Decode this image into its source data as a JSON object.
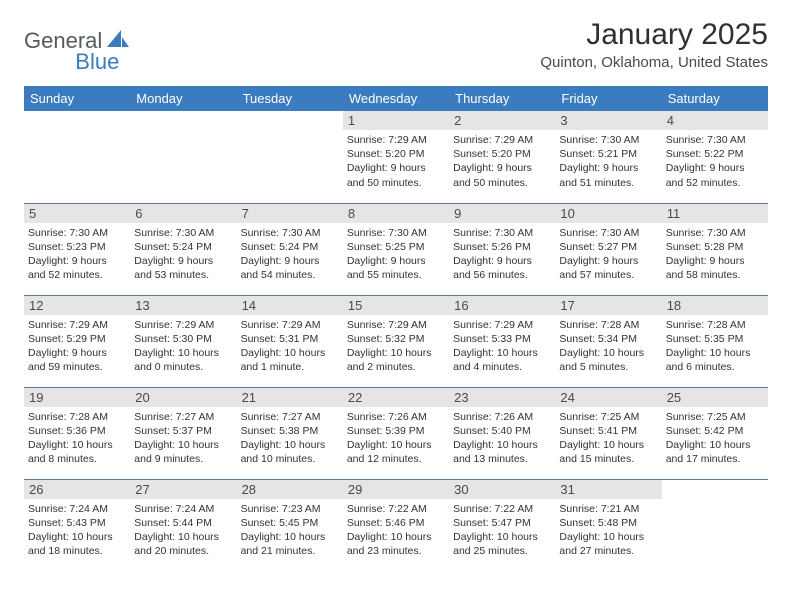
{
  "logo": {
    "general": "General",
    "blue": "Blue"
  },
  "header": {
    "title": "January 2025",
    "location": "Quinton, Oklahoma, United States"
  },
  "colors": {
    "header_bg": "#3b7bbf",
    "header_text": "#ffffff",
    "daynum_bg": "#e5e5e5",
    "row_border": "#5a7a9a",
    "body_text": "#333333"
  },
  "dayHeaders": [
    "Sunday",
    "Monday",
    "Tuesday",
    "Wednesday",
    "Thursday",
    "Friday",
    "Saturday"
  ],
  "weeks": [
    [
      {
        "empty": true
      },
      {
        "empty": true
      },
      {
        "empty": true
      },
      {
        "day": "1",
        "sunrise": "Sunrise: 7:29 AM",
        "sunset": "Sunset: 5:20 PM",
        "daylight": "Daylight: 9 hours and 50 minutes."
      },
      {
        "day": "2",
        "sunrise": "Sunrise: 7:29 AM",
        "sunset": "Sunset: 5:20 PM",
        "daylight": "Daylight: 9 hours and 50 minutes."
      },
      {
        "day": "3",
        "sunrise": "Sunrise: 7:30 AM",
        "sunset": "Sunset: 5:21 PM",
        "daylight": "Daylight: 9 hours and 51 minutes."
      },
      {
        "day": "4",
        "sunrise": "Sunrise: 7:30 AM",
        "sunset": "Sunset: 5:22 PM",
        "daylight": "Daylight: 9 hours and 52 minutes."
      }
    ],
    [
      {
        "day": "5",
        "sunrise": "Sunrise: 7:30 AM",
        "sunset": "Sunset: 5:23 PM",
        "daylight": "Daylight: 9 hours and 52 minutes."
      },
      {
        "day": "6",
        "sunrise": "Sunrise: 7:30 AM",
        "sunset": "Sunset: 5:24 PM",
        "daylight": "Daylight: 9 hours and 53 minutes."
      },
      {
        "day": "7",
        "sunrise": "Sunrise: 7:30 AM",
        "sunset": "Sunset: 5:24 PM",
        "daylight": "Daylight: 9 hours and 54 minutes."
      },
      {
        "day": "8",
        "sunrise": "Sunrise: 7:30 AM",
        "sunset": "Sunset: 5:25 PM",
        "daylight": "Daylight: 9 hours and 55 minutes."
      },
      {
        "day": "9",
        "sunrise": "Sunrise: 7:30 AM",
        "sunset": "Sunset: 5:26 PM",
        "daylight": "Daylight: 9 hours and 56 minutes."
      },
      {
        "day": "10",
        "sunrise": "Sunrise: 7:30 AM",
        "sunset": "Sunset: 5:27 PM",
        "daylight": "Daylight: 9 hours and 57 minutes."
      },
      {
        "day": "11",
        "sunrise": "Sunrise: 7:30 AM",
        "sunset": "Sunset: 5:28 PM",
        "daylight": "Daylight: 9 hours and 58 minutes."
      }
    ],
    [
      {
        "day": "12",
        "sunrise": "Sunrise: 7:29 AM",
        "sunset": "Sunset: 5:29 PM",
        "daylight": "Daylight: 9 hours and 59 minutes."
      },
      {
        "day": "13",
        "sunrise": "Sunrise: 7:29 AM",
        "sunset": "Sunset: 5:30 PM",
        "daylight": "Daylight: 10 hours and 0 minutes."
      },
      {
        "day": "14",
        "sunrise": "Sunrise: 7:29 AM",
        "sunset": "Sunset: 5:31 PM",
        "daylight": "Daylight: 10 hours and 1 minute."
      },
      {
        "day": "15",
        "sunrise": "Sunrise: 7:29 AM",
        "sunset": "Sunset: 5:32 PM",
        "daylight": "Daylight: 10 hours and 2 minutes."
      },
      {
        "day": "16",
        "sunrise": "Sunrise: 7:29 AM",
        "sunset": "Sunset: 5:33 PM",
        "daylight": "Daylight: 10 hours and 4 minutes."
      },
      {
        "day": "17",
        "sunrise": "Sunrise: 7:28 AM",
        "sunset": "Sunset: 5:34 PM",
        "daylight": "Daylight: 10 hours and 5 minutes."
      },
      {
        "day": "18",
        "sunrise": "Sunrise: 7:28 AM",
        "sunset": "Sunset: 5:35 PM",
        "daylight": "Daylight: 10 hours and 6 minutes."
      }
    ],
    [
      {
        "day": "19",
        "sunrise": "Sunrise: 7:28 AM",
        "sunset": "Sunset: 5:36 PM",
        "daylight": "Daylight: 10 hours and 8 minutes."
      },
      {
        "day": "20",
        "sunrise": "Sunrise: 7:27 AM",
        "sunset": "Sunset: 5:37 PM",
        "daylight": "Daylight: 10 hours and 9 minutes."
      },
      {
        "day": "21",
        "sunrise": "Sunrise: 7:27 AM",
        "sunset": "Sunset: 5:38 PM",
        "daylight": "Daylight: 10 hours and 10 minutes."
      },
      {
        "day": "22",
        "sunrise": "Sunrise: 7:26 AM",
        "sunset": "Sunset: 5:39 PM",
        "daylight": "Daylight: 10 hours and 12 minutes."
      },
      {
        "day": "23",
        "sunrise": "Sunrise: 7:26 AM",
        "sunset": "Sunset: 5:40 PM",
        "daylight": "Daylight: 10 hours and 13 minutes."
      },
      {
        "day": "24",
        "sunrise": "Sunrise: 7:25 AM",
        "sunset": "Sunset: 5:41 PM",
        "daylight": "Daylight: 10 hours and 15 minutes."
      },
      {
        "day": "25",
        "sunrise": "Sunrise: 7:25 AM",
        "sunset": "Sunset: 5:42 PM",
        "daylight": "Daylight: 10 hours and 17 minutes."
      }
    ],
    [
      {
        "day": "26",
        "sunrise": "Sunrise: 7:24 AM",
        "sunset": "Sunset: 5:43 PM",
        "daylight": "Daylight: 10 hours and 18 minutes."
      },
      {
        "day": "27",
        "sunrise": "Sunrise: 7:24 AM",
        "sunset": "Sunset: 5:44 PM",
        "daylight": "Daylight: 10 hours and 20 minutes."
      },
      {
        "day": "28",
        "sunrise": "Sunrise: 7:23 AM",
        "sunset": "Sunset: 5:45 PM",
        "daylight": "Daylight: 10 hours and 21 minutes."
      },
      {
        "day": "29",
        "sunrise": "Sunrise: 7:22 AM",
        "sunset": "Sunset: 5:46 PM",
        "daylight": "Daylight: 10 hours and 23 minutes."
      },
      {
        "day": "30",
        "sunrise": "Sunrise: 7:22 AM",
        "sunset": "Sunset: 5:47 PM",
        "daylight": "Daylight: 10 hours and 25 minutes."
      },
      {
        "day": "31",
        "sunrise": "Sunrise: 7:21 AM",
        "sunset": "Sunset: 5:48 PM",
        "daylight": "Daylight: 10 hours and 27 minutes."
      },
      {
        "empty": true
      }
    ]
  ]
}
